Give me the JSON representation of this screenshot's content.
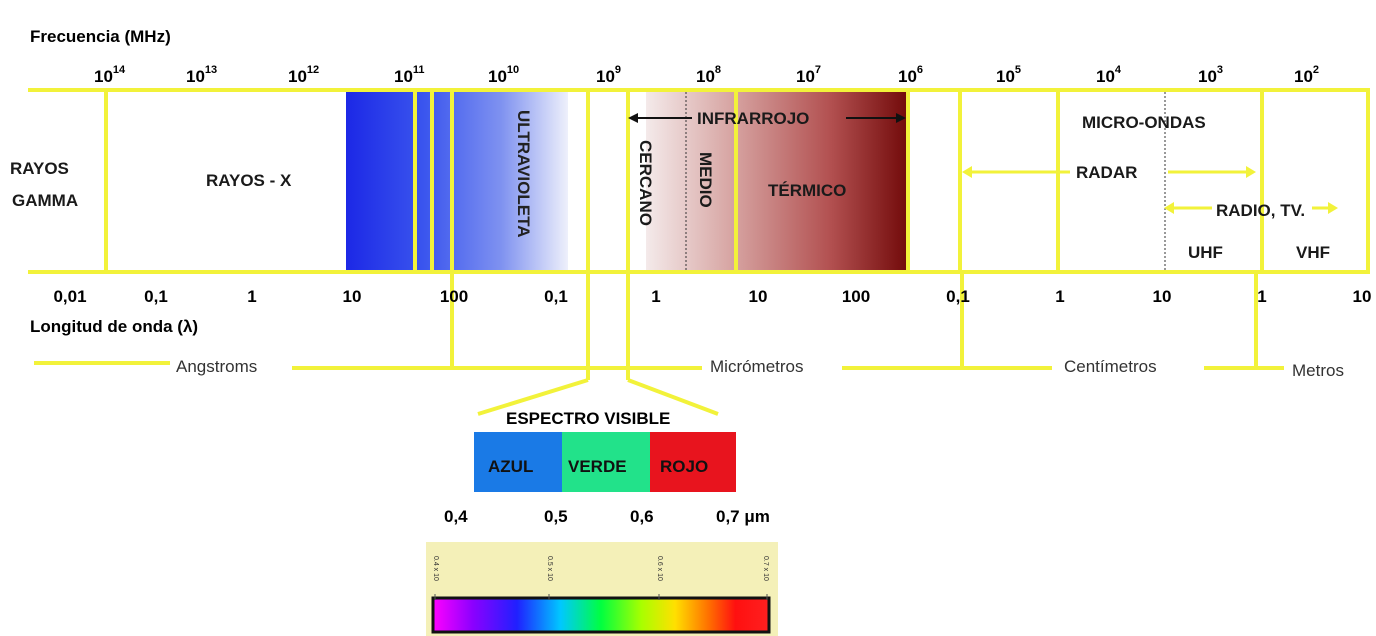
{
  "frequency_title": "Frecuencia (MHz)",
  "wavelength_title": "Longitud de onda (λ)",
  "frequency_ticks": [
    {
      "base": "10",
      "exp": "14"
    },
    {
      "base": "10",
      "exp": "13"
    },
    {
      "base": "10",
      "exp": "12"
    },
    {
      "base": "10",
      "exp": "11"
    },
    {
      "base": "10",
      "exp": "10"
    },
    {
      "base": "10",
      "exp": "9"
    },
    {
      "base": "10",
      "exp": "8"
    },
    {
      "base": "10",
      "exp": "7"
    },
    {
      "base": "10",
      "exp": "6"
    },
    {
      "base": "10",
      "exp": "5"
    },
    {
      "base": "10",
      "exp": "4"
    },
    {
      "base": "10",
      "exp": "3"
    },
    {
      "base": "10",
      "exp": "2"
    }
  ],
  "wavelength_ticks": [
    "0,01",
    "0,1",
    "1",
    "10",
    "100",
    "0,1",
    "1",
    "10",
    "100",
    "0,1",
    "1",
    "10",
    "1",
    "10"
  ],
  "regions": {
    "gamma": [
      "RAYOS",
      "GAMMA"
    ],
    "xray": "RAYOS - X",
    "uv": "ULTRAVIOLETA",
    "infrared": "INFRARROJO",
    "near": "CERCANO",
    "medium": "MEDIO",
    "thermal": "TÉRMICO",
    "microwave": "MICRO-ONDAS",
    "radar": "RADAR",
    "radio_tv": "RADIO, TV.",
    "uhf": "UHF",
    "vhf": "VHF"
  },
  "units": [
    "Angstroms",
    "Micrómetros",
    "Centímetros",
    "Metros"
  ],
  "visible": {
    "title": "ESPECTRO VISIBLE",
    "bands": [
      {
        "label": "AZUL",
        "color": "#1a7ae6"
      },
      {
        "label": "VERDE",
        "color": "#22e28a"
      },
      {
        "label": "ROJO",
        "color": "#e8141e"
      }
    ],
    "ticks": [
      "0,4",
      "0,5",
      "0,6",
      "0,7 μm"
    ]
  },
  "gradient_ticks": [
    "0.4 x 10",
    "0.5 x 10",
    "0.6 x 10",
    "0.7 x 10"
  ],
  "colors": {
    "axis_yellow": "#f2f23a",
    "uv_blue": "#2430e8",
    "thermal_dark": "#7a0a0a",
    "gradient_bg": "#f4f0b8"
  }
}
